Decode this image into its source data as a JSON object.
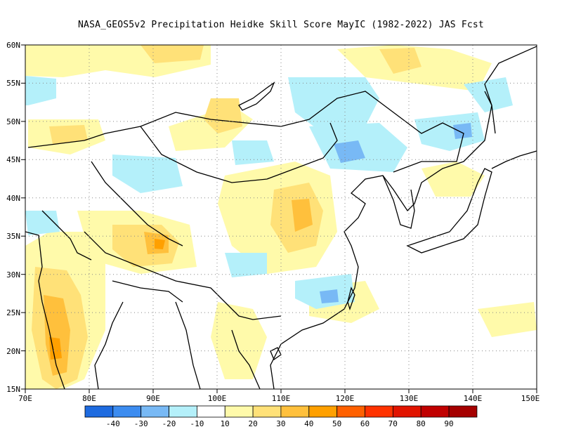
{
  "title": "NASA_GEOS5v2  Precipitation Heidke Skill Score MayIC (1982-2022) JAS Fcst",
  "lat_labels": [
    "60N",
    "55N",
    "50N",
    "45N",
    "40N",
    "35N",
    "30N",
    "25N",
    "20N",
    "15N"
  ],
  "lon_labels": [
    "70E",
    "80E",
    "90E",
    "100E",
    "110E",
    "120E",
    "130E",
    "140E",
    "150E"
  ],
  "colorbar": {
    "colors": [
      "#1e6be0",
      "#3c8cf0",
      "#78b9f5",
      "#b4f0fa",
      "#ffffff",
      "#fffaaa",
      "#ffe178",
      "#ffc03c",
      "#ffa000",
      "#ff6000",
      "#ff3200",
      "#e11400",
      "#c00000",
      "#a50000"
    ],
    "labels": [
      "-40",
      "-30",
      "-20",
      "-10",
      "10",
      "20",
      "30",
      "40",
      "50",
      "60",
      "70",
      "80",
      "90"
    ]
  },
  "colors": {
    "coast": "#000000",
    "grid": "#888888"
  }
}
